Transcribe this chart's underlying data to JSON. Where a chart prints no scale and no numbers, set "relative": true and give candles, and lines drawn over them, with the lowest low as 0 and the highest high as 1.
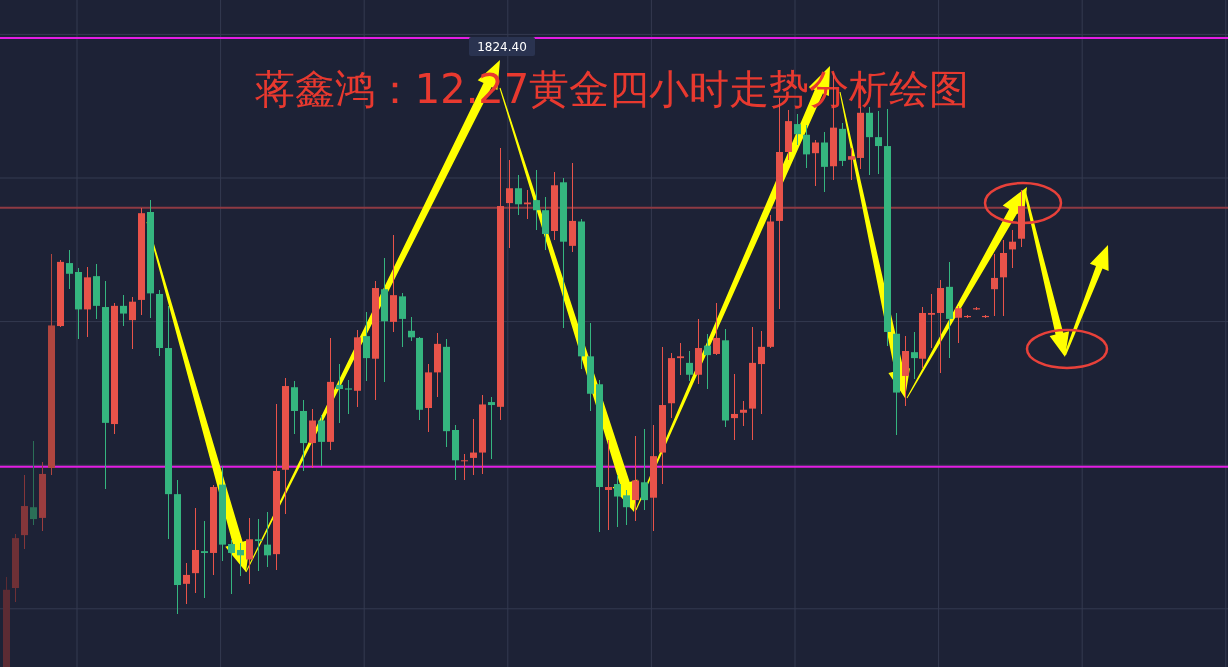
{
  "chart_data": {
    "type": "candlestick",
    "title": "蒋鑫鸿：12.27黄金四小时走势分析绘图",
    "relative": true,
    "grid": true,
    "annotations": [
      "1824.40"
    ],
    "categories": [
      null,
      null,
      null,
      null,
      null,
      null,
      null,
      null,
      null,
      null,
      null,
      null,
      null,
      null,
      null,
      null,
      null,
      null,
      null,
      null,
      null,
      null,
      null,
      null,
      null,
      null,
      null,
      null,
      null,
      null,
      null,
      null,
      null,
      null,
      null,
      null,
      null,
      null,
      null,
      null,
      null,
      null,
      null,
      null,
      null,
      null,
      null,
      null,
      null,
      null,
      null,
      null,
      null,
      null,
      null,
      null,
      null,
      null,
      null,
      null,
      null,
      null,
      null,
      null,
      null,
      null,
      null,
      null,
      null,
      null,
      null,
      null,
      null,
      null,
      null,
      null,
      null,
      null,
      null,
      null,
      null,
      null,
      null,
      null,
      null,
      null,
      null,
      null,
      null,
      null,
      null,
      null,
      null,
      null,
      null,
      null,
      null,
      null,
      null,
      null,
      null,
      null,
      null,
      null,
      null,
      null,
      null,
      null,
      null,
      null,
      null,
      null,
      null,
      null
    ],
    "ohlc": [
      [
        0,
        0.152,
        0,
        0.13
      ],
      [
        0.133,
        0.224,
        0.109,
        0.217
      ],
      [
        0.222,
        0.323,
        0.199,
        0.271
      ],
      [
        0.269,
        0.381,
        0.239,
        0.249
      ],
      [
        0.251,
        0.345,
        0.229,
        0.325
      ],
      [
        0.335,
        0.696,
        0.323,
        0.575
      ],
      [
        0.574,
        0.685,
        0.572,
        0.682
      ],
      [
        0.68,
        0.702,
        0.636,
        0.662
      ],
      [
        0.665,
        0.672,
        0.552,
        0.602
      ],
      [
        0.602,
        0.674,
        0.555,
        0.656
      ],
      [
        0.658,
        0.678,
        0.586,
        0.608
      ],
      [
        0.606,
        0.649,
        0.3,
        0.411
      ],
      [
        0.409,
        0.613,
        0.392,
        0.608
      ],
      [
        0.608,
        0.626,
        0.574,
        0.595
      ],
      [
        0.584,
        0.623,
        0.535,
        0.615
      ],
      [
        0.618,
        0.773,
        0.593,
        0.764
      ],
      [
        0.766,
        0.786,
        0.588,
        0.629
      ],
      [
        0.628,
        0.635,
        0.523,
        0.537
      ],
      [
        0.537,
        0.608,
        0.215,
        0.291
      ],
      [
        0.291,
        0.314,
        0.089,
        0.138
      ],
      [
        0.14,
        0.175,
        0.106,
        0.155
      ],
      [
        0.158,
        0.268,
        0.125,
        0.197
      ],
      [
        0.195,
        0.246,
        0.116,
        0.192
      ],
      [
        0.192,
        0.307,
        0.155,
        0.303
      ],
      [
        0.307,
        0.338,
        0.179,
        0.206
      ],
      [
        0.207,
        0.214,
        0.123,
        0.192
      ],
      [
        0.197,
        0.208,
        0.154,
        0.188
      ],
      [
        0.181,
        0.251,
        0.14,
        0.215
      ],
      [
        0.215,
        0.249,
        0.161,
        0.212
      ],
      [
        0.206,
        0.261,
        0.168,
        0.188
      ],
      [
        0.19,
        0.442,
        0.163,
        0.33
      ],
      [
        0.332,
        0.487,
        0.258,
        0.473
      ],
      [
        0.471,
        0.482,
        0.392,
        0.431
      ],
      [
        0.431,
        0.449,
        0.33,
        0.377
      ],
      [
        0.377,
        0.435,
        0.335,
        0.415
      ],
      [
        0.415,
        0.424,
        0.338,
        0.379
      ],
      [
        0.379,
        0.554,
        0.365,
        0.48
      ],
      [
        0.475,
        0.51,
        0.411,
        0.468
      ],
      [
        0.469,
        0.483,
        0.426,
        0.467
      ],
      [
        0.465,
        0.568,
        0.438,
        0.555
      ],
      [
        0.557,
        0.597,
        0.482,
        0.52
      ],
      [
        0.519,
        0.649,
        0.449,
        0.638
      ],
      [
        0.636,
        0.689,
        0.48,
        0.582
      ],
      [
        0.581,
        0.727,
        0.564,
        0.626
      ],
      [
        0.624,
        0.629,
        0.539,
        0.586
      ],
      [
        0.566,
        0.589,
        0.548,
        0.555
      ],
      [
        0.554,
        0.555,
        0.415,
        0.433
      ],
      [
        0.436,
        0.51,
        0.395,
        0.496
      ],
      [
        0.496,
        0.562,
        0.455,
        0.544
      ],
      [
        0.539,
        0.552,
        0.37,
        0.397
      ],
      [
        0.399,
        0.408,
        0.314,
        0.348
      ],
      [
        0.347,
        0.359,
        0.314,
        0.348
      ],
      [
        0.352,
        0.417,
        0.323,
        0.361
      ],
      [
        0.361,
        0.458,
        0.325,
        0.442
      ],
      [
        0.446,
        0.455,
        0.35,
        0.441
      ],
      [
        0.438,
        0.874,
        0.415,
        0.776
      ],
      [
        0.781,
        0.854,
        0.705,
        0.806
      ],
      [
        0.806,
        0.829,
        0.761,
        0.779
      ],
      [
        0.779,
        0.803,
        0.754,
        0.782
      ],
      [
        0.786,
        0.836,
        0.736,
        0.769
      ],
      [
        0.769,
        0.791,
        0.702,
        0.729
      ],
      [
        0.734,
        0.833,
        0.719,
        0.811
      ],
      [
        0.816,
        0.823,
        0.571,
        0.716
      ],
      [
        0.709,
        0.849,
        0.699,
        0.751
      ],
      [
        0.75,
        0.754,
        0.502,
        0.523
      ],
      [
        0.523,
        0.579,
        0.431,
        0.46
      ],
      [
        0.476,
        0.483,
        0.228,
        0.303
      ],
      [
        0.298,
        0.382,
        0.231,
        0.303
      ],
      [
        0.308,
        0.323,
        0.235,
        0.287
      ],
      [
        0.289,
        0.298,
        0.239,
        0.269
      ],
      [
        0.281,
        0.389,
        0.246,
        0.314
      ],
      [
        0.311,
        0.401,
        0.264,
        0.281
      ],
      [
        0.285,
        0.408,
        0.229,
        0.355
      ],
      [
        0.361,
        0.539,
        0.308,
        0.441
      ],
      [
        0.444,
        0.528,
        0.419,
        0.52
      ],
      [
        0.52,
        0.545,
        0.492,
        0.523
      ],
      [
        0.512,
        0.532,
        0.482,
        0.492
      ],
      [
        0.492,
        0.586,
        0.476,
        0.537
      ],
      [
        0.541,
        0.561,
        0.468,
        0.525
      ],
      [
        0.527,
        0.613,
        0.525,
        0.554
      ],
      [
        0.55,
        0.569,
        0.404,
        0.415
      ],
      [
        0.419,
        0.493,
        0.382,
        0.426
      ],
      [
        0.428,
        0.448,
        0.406,
        0.433
      ],
      [
        0.435,
        0.572,
        0.382,
        0.512
      ],
      [
        0.51,
        0.566,
        0.426,
        0.539
      ],
      [
        0.539,
        0.761,
        0.537,
        0.75
      ],
      [
        0.751,
        0.958,
        0.602,
        0.867
      ],
      [
        0.867,
        0.937,
        0.854,
        0.919
      ],
      [
        0.914,
        0.931,
        0.879,
        0.897
      ],
      [
        0.896,
        0.912,
        0.84,
        0.863
      ],
      [
        0.865,
        0.887,
        0.809,
        0.883
      ],
      [
        0.883,
        0.901,
        0.8,
        0.842
      ],
      [
        0.843,
        1,
        0.82,
        0.908
      ],
      [
        0.906,
        0.916,
        0.843,
        0.852
      ],
      [
        0.854,
        0.874,
        0.82,
        0.86
      ],
      [
        0.857,
        0.943,
        0.838,
        0.933
      ],
      [
        0.933,
        0.943,
        0.829,
        0.892
      ],
      [
        0.892,
        0.936,
        0.83,
        0.877
      ],
      [
        0.877,
        0.939,
        0.541,
        0.564
      ],
      [
        0.561,
        0.596,
        0.39,
        0.462
      ],
      [
        0.49,
        0.557,
        0.44,
        0.532
      ],
      [
        0.53,
        0.564,
        0.485,
        0.52
      ],
      [
        0.519,
        0.606,
        0.503,
        0.596
      ],
      [
        0.593,
        0.628,
        0.537,
        0.596
      ],
      [
        0.596,
        0.651,
        0.495,
        0.638
      ],
      [
        0.64,
        0.682,
        0.52,
        0.586
      ],
      [
        0.588,
        0.608,
        0.545,
        0.604
      ],
      [
        0.589,
        0.593,
        0.588,
        0.591
      ],
      [
        0.602,
        0.606,
        0.601,
        0.604
      ],
      [
        0.589,
        0.593,
        0.588,
        0.591
      ],
      [
        0.636,
        0.696,
        0.591,
        0.655
      ],
      [
        0.656,
        0.719,
        0.591,
        0.697
      ],
      [
        0.703,
        0.736,
        0.672,
        0.716
      ],
      [
        0.721,
        0.803,
        0.707,
        0.776
      ]
    ],
    "colors": [
      "#5c2b33",
      "#6e3036",
      "#84363a",
      "#2b6f57",
      "#9b3d3f",
      "#b0463f",
      "#e8534a",
      "#35b57f",
      "#35b57f",
      "#e8534a",
      "#35b57f",
      "#35b57f",
      "#e8534a",
      "#35b57f",
      "#e8534a",
      "#e8534a",
      "#35b57f",
      "#35b57f",
      "#35b57f",
      "#35b57f",
      "#e8534a",
      "#e8534a",
      "#35b57f",
      "#e8534a",
      "#35b57f",
      "#35b57f",
      "#35b57f",
      "#e8534a",
      "#35b57f",
      "#35b57f",
      "#e8534a",
      "#e8534a",
      "#35b57f",
      "#35b57f",
      "#e8534a",
      "#35b57f",
      "#e8534a",
      "#35b57f",
      "#35b57f",
      "#e8534a",
      "#35b57f",
      "#e8534a",
      "#35b57f",
      "#e8534a",
      "#35b57f",
      "#35b57f",
      "#35b57f",
      "#e8534a",
      "#e8534a",
      "#35b57f",
      "#35b57f",
      "#e8534a",
      "#e8534a",
      "#e8534a",
      "#35b57f",
      "#e8534a",
      "#e8534a",
      "#35b57f",
      "#e8534a",
      "#35b57f",
      "#35b57f",
      "#e8534a",
      "#35b57f",
      "#e8534a",
      "#35b57f",
      "#35b57f",
      "#35b57f",
      "#e8534a",
      "#35b57f",
      "#35b57f",
      "#e8534a",
      "#35b57f",
      "#e8534a",
      "#e8534a",
      "#e8534a",
      "#e8534a",
      "#35b57f",
      "#e8534a",
      "#35b57f",
      "#e8534a",
      "#35b57f",
      "#e8534a",
      "#e8534a",
      "#e8534a",
      "#e8534a",
      "#e8534a",
      "#e8534a",
      "#e8534a",
      "#35b57f",
      "#35b57f",
      "#e8534a",
      "#35b57f",
      "#e8534a",
      "#35b57f",
      "#e8534a",
      "#e8534a",
      "#35b57f",
      "#35b57f",
      "#35b57f",
      "#35b57f",
      "#e8534a",
      "#35b57f",
      "#e8534a",
      "#e8534a",
      "#e8534a",
      "#35b57f",
      "#e8534a",
      "#e8534a",
      "#e8534a",
      "#e8534a",
      "#e8534a",
      "#e8534a",
      "#e8534a",
      "#e8534a"
    ],
    "ref_lines": [
      {
        "axis": "y",
        "value": 1.059,
        "color": "#e31de3"
      },
      {
        "axis": "y",
        "value": 0.337,
        "color": "#e31de3"
      },
      {
        "axis": "y",
        "value": 0.773,
        "color": "#8e3a43"
      }
    ]
  }
}
